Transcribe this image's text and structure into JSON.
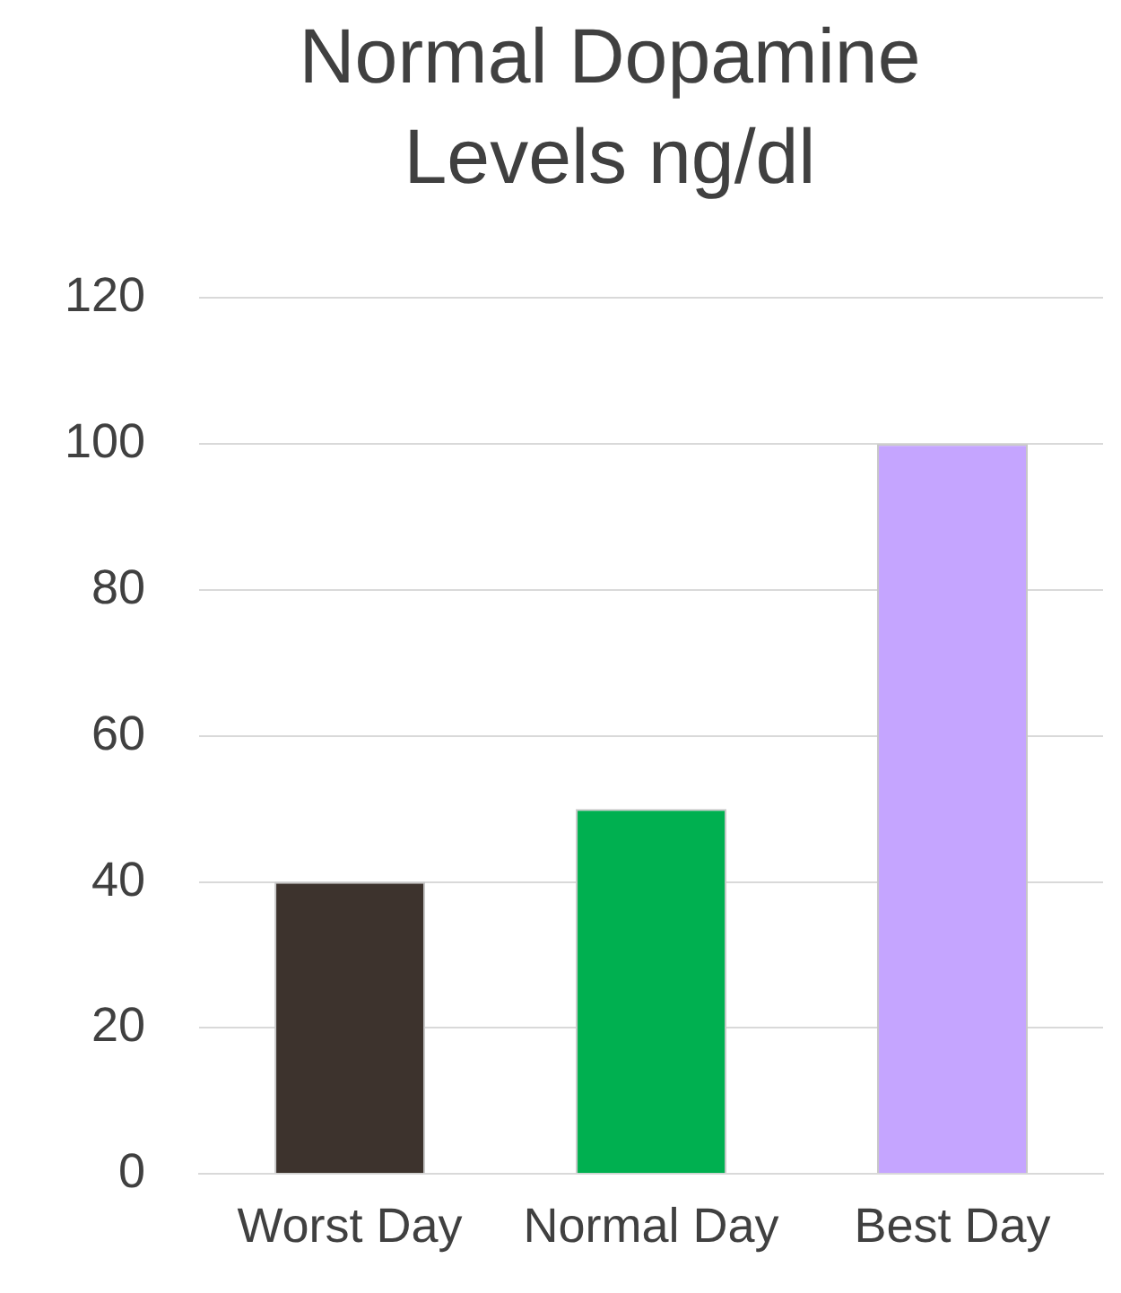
{
  "chart_data": {
    "type": "bar",
    "title": "Normal Dopamine Levels ng/dl",
    "categories": [
      "Worst Day",
      "Normal Day",
      "Best Day"
    ],
    "values": [
      40,
      50,
      100
    ],
    "colors": [
      "#3d332d",
      "#00b050",
      "#c5a5ff"
    ],
    "ylim": [
      0,
      120
    ],
    "yticks": [
      0,
      20,
      40,
      60,
      80,
      100,
      120
    ],
    "grid": "y",
    "legend": false
  }
}
